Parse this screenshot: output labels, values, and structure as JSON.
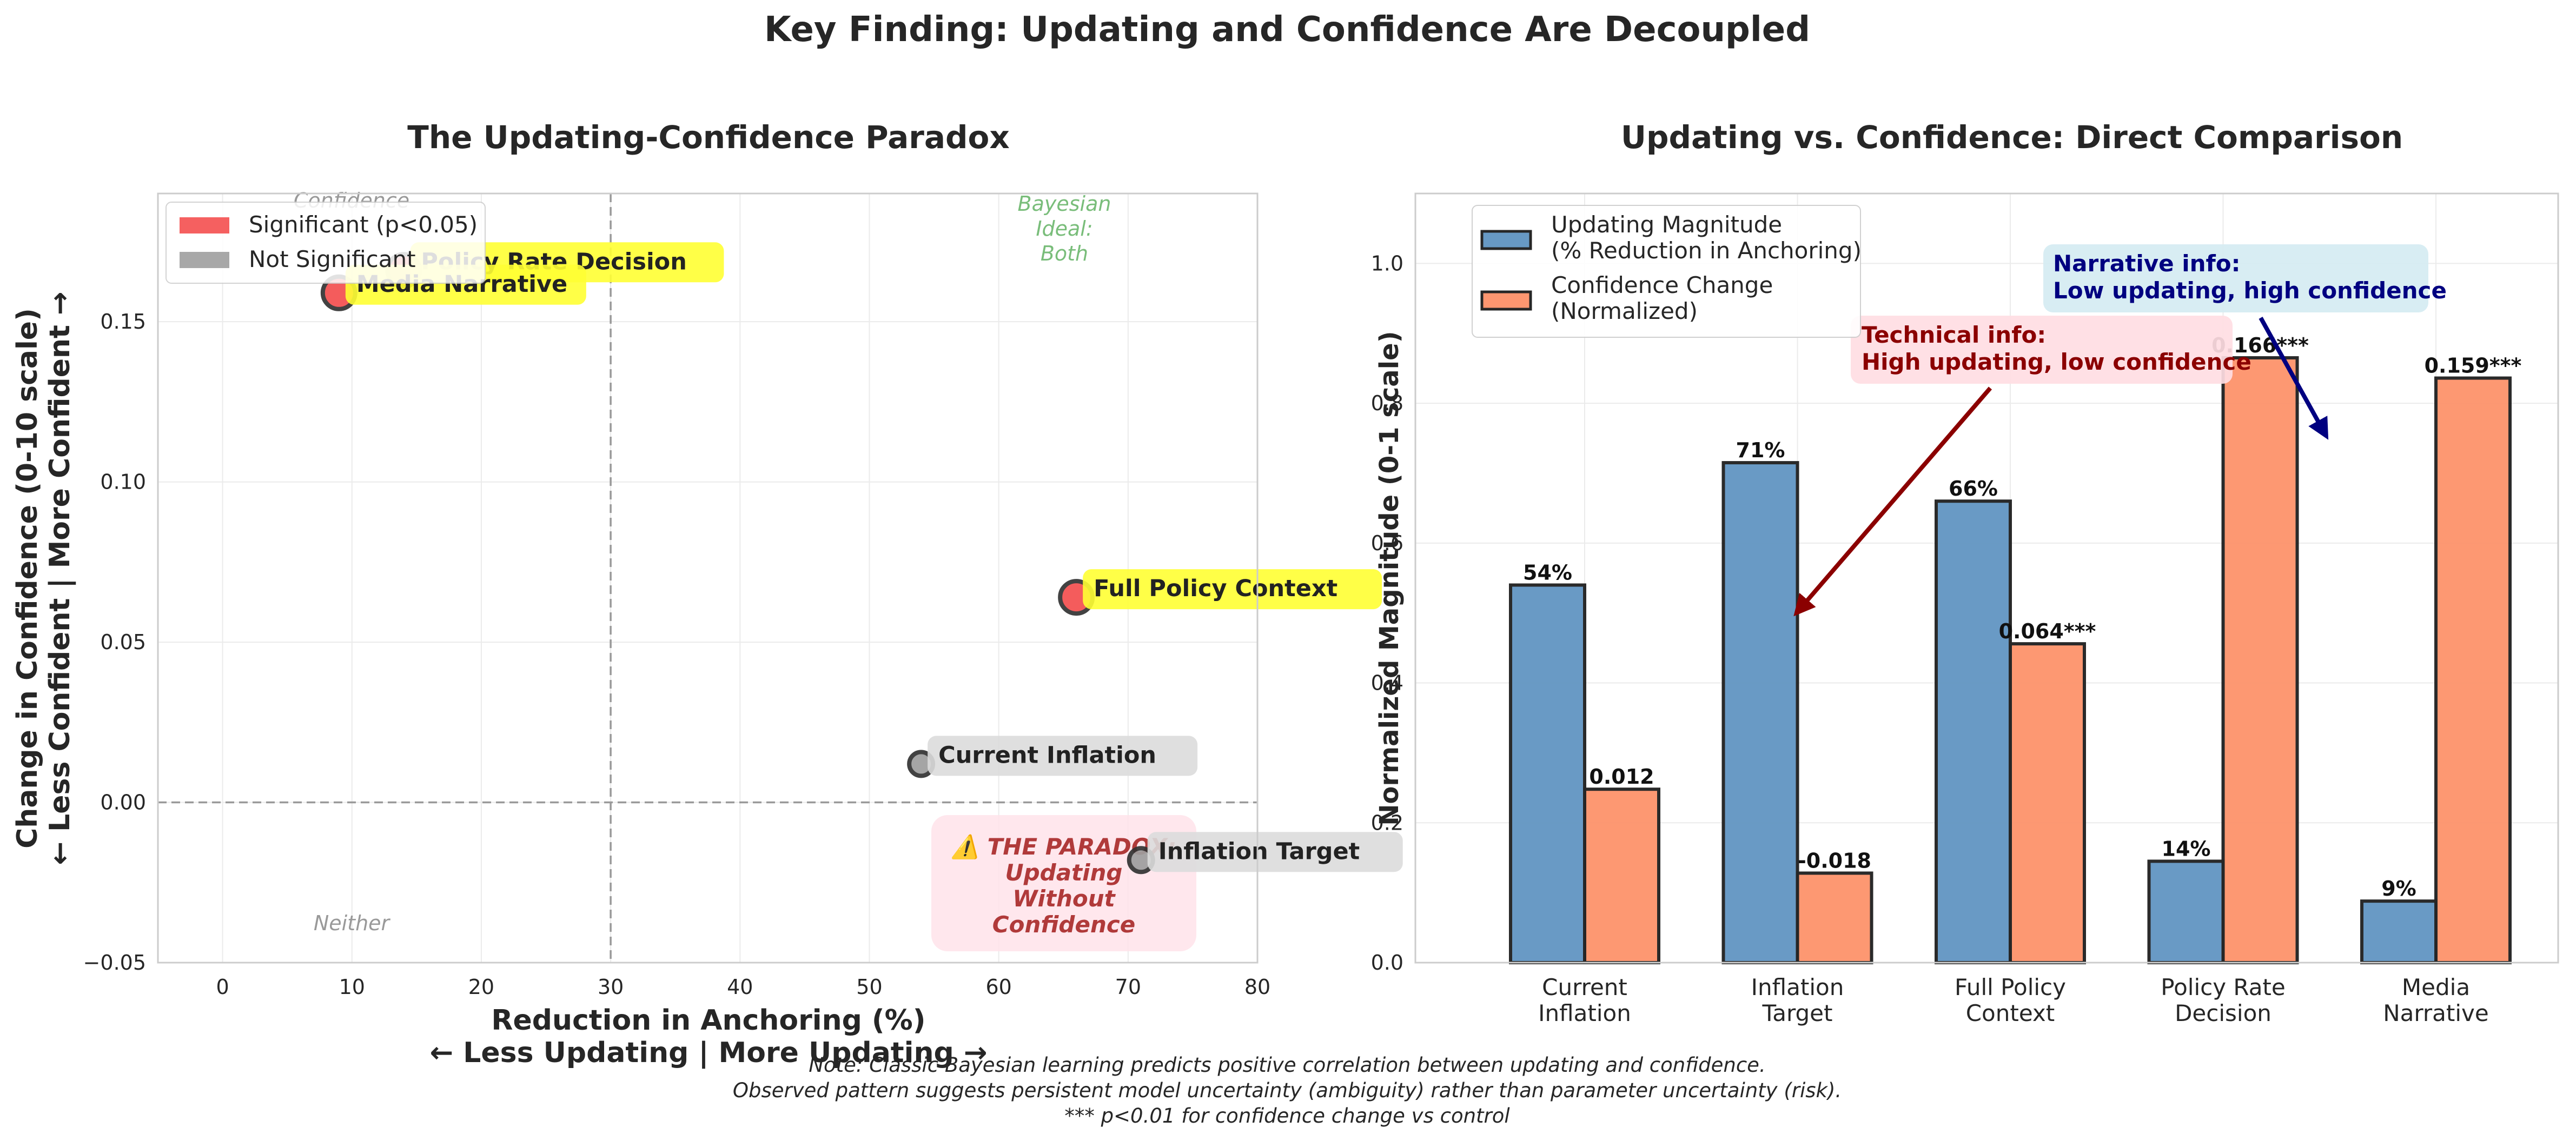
{
  "figure": {
    "suptitle": "Key Finding: Updating and Confidence Are Decoupled",
    "note_lines": [
      "Note: Classic Bayesian learning predicts positive correlation between updating and confidence.",
      "Observed pattern suggests persistent model uncertainty (ambiguity) rather than parameter uncertainty (risk).",
      "*** p<0.01 for confidence change vs control"
    ]
  },
  "colors": {
    "significant": "#f44f4f",
    "not_significant": "#9e9e9e",
    "label_highlight": "#ffff33",
    "label_muted": "#dcdcdc",
    "updating_bar": "#6799c4",
    "confidence_bar": "#fd9670",
    "technical_text": "#8b0000",
    "technical_box": "#ffdde3",
    "narrative_text": "#000080",
    "narrative_box": "#d6ecf2",
    "bayesian_text": "#79bd7a",
    "paradox_text": "#b03a3a",
    "paradox_box": "#ffe3ea",
    "quadrant_text": "#999999"
  },
  "chart_data": [
    {
      "type": "scatter",
      "title": "The Updating-Confidence Paradox",
      "xlabel": "Reduction in Anchoring (%)",
      "xlabel2": "← Less Updating | More Updating →",
      "ylabel": "Change in Confidence (0-10 scale)",
      "ylabel2": "← Less Confident | More Confident →",
      "xlim": [
        -5,
        80
      ],
      "ylim": [
        -0.05,
        0.19
      ],
      "xticks": [
        0,
        10,
        20,
        30,
        40,
        50,
        60,
        70,
        80
      ],
      "yticks": [
        -0.05,
        0.0,
        0.05,
        0.1,
        0.15
      ],
      "ytick_labels": [
        "−0.05",
        "0.00",
        "0.05",
        "0.10",
        "0.15"
      ],
      "grid": true,
      "reference_lines": {
        "x": 30,
        "y": 0
      },
      "legend": {
        "placement": "top-left",
        "entries": [
          {
            "label": "Significant (p<0.05)",
            "color": "#f44f4f"
          },
          {
            "label": "Not Significant",
            "color": "#9e9e9e"
          }
        ]
      },
      "points": [
        {
          "label": "Current Inflation",
          "x": 54,
          "y": 0.012,
          "significant": false
        },
        {
          "label": "Inflation Target",
          "x": 71,
          "y": -0.018,
          "significant": false
        },
        {
          "label": "Full Policy Context",
          "x": 66,
          "y": 0.064,
          "significant": true
        },
        {
          "label": "Policy Rate Decision",
          "x": 14,
          "y": 0.166,
          "significant": true
        },
        {
          "label": "Media Narrative",
          "x": 9,
          "y": 0.159,
          "significant": true
        }
      ],
      "quadrant_labels": {
        "top_left": "Confidence",
        "top_right": [
          "Bayesian",
          "Ideal:",
          "Both"
        ],
        "bottom_left": "Neither",
        "bottom_right": [
          "⚠️ THE PARADOX:",
          "Updating",
          "Without",
          "Confidence"
        ]
      }
    },
    {
      "type": "bar",
      "title": "Updating vs. Confidence: Direct Comparison",
      "ylabel": "Normalized Magnitude (0-1 scale)",
      "ylim": [
        0,
        1.1
      ],
      "yticks": [
        0.0,
        0.2,
        0.4,
        0.6,
        0.8,
        1.0
      ],
      "grid": true,
      "categories": [
        [
          "Current",
          "Inflation"
        ],
        [
          "Inflation",
          "Target"
        ],
        [
          "Full Policy",
          "Context"
        ],
        [
          "Policy Rate",
          "Decision"
        ],
        [
          "Media",
          "Narrative"
        ]
      ],
      "legend": {
        "placement": "top-left"
      },
      "series": [
        {
          "name": [
            "Updating Magnitude",
            "(% Reduction in Anchoring)"
          ],
          "values": [
            0.54,
            0.715,
            0.66,
            0.145,
            0.088
          ],
          "labels": [
            "54%",
            "71%",
            "66%",
            "14%",
            "9%"
          ],
          "color": "#6799c4"
        },
        {
          "name": [
            "Confidence Change",
            "(Normalized)"
          ],
          "values": [
            0.248,
            0.128,
            0.456,
            0.865,
            0.836
          ],
          "labels": [
            "0.012",
            "-0.018",
            "0.064***",
            "0.166***",
            "0.159***"
          ],
          "color": "#fd9670"
        }
      ],
      "annotations": [
        {
          "lines": [
            "Technical info:",
            "High updating, low confidence"
          ],
          "arrow_to": [
            1.0,
            0.5
          ]
        },
        {
          "lines": [
            "Narrative info:",
            "Low updating, high confidence"
          ],
          "arrow_to": [
            3.5,
            0.75
          ]
        }
      ]
    }
  ]
}
